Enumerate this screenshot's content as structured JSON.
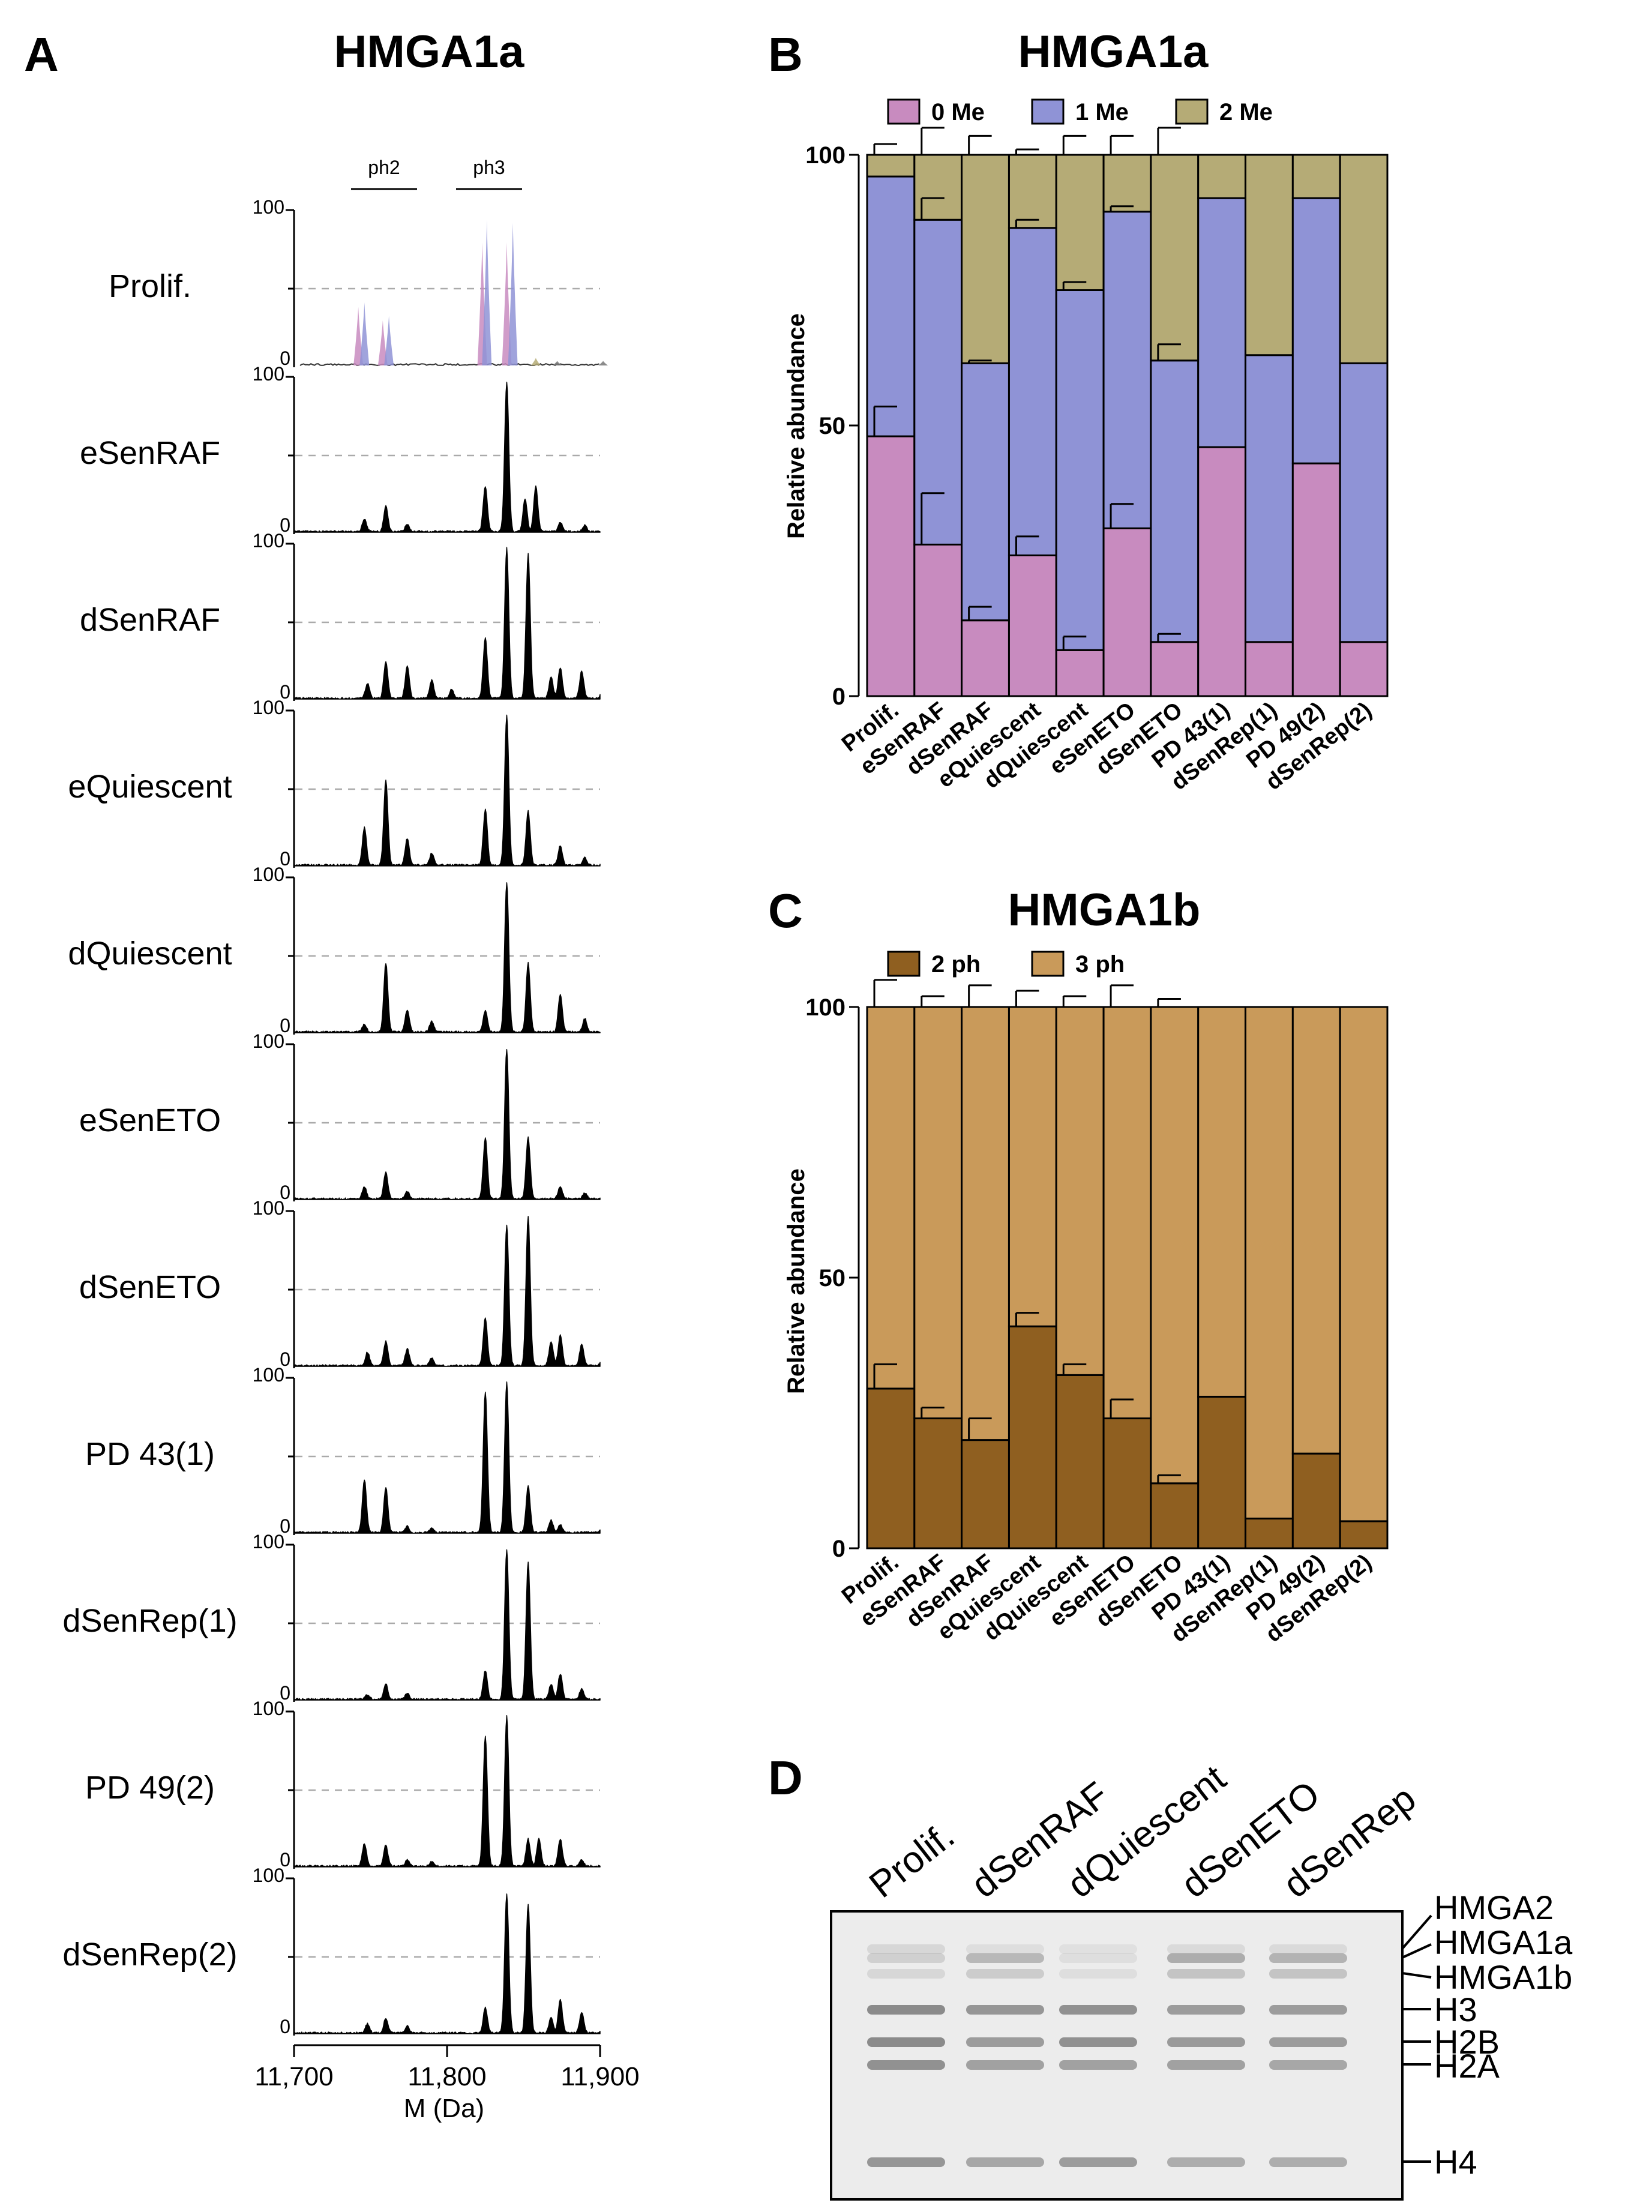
{
  "panelA": {
    "letter": "A",
    "title": "HMGA1a",
    "peak_labels": [
      "ph2",
      "ph3"
    ],
    "y_top": "100",
    "y_bottom": "0",
    "xaxis": {
      "ticks": [
        "11,700",
        "11,800",
        "11,900"
      ],
      "tick_values": [
        11700,
        11800,
        11900
      ],
      "range": [
        11700,
        11900
      ],
      "label": "M (Da)"
    },
    "colors": {
      "trace": "#000000",
      "me0": "#c88bbf",
      "me1": "#8f93d6",
      "me2": "#b5ab76",
      "dash": "#aaaaaa"
    },
    "spectra": [
      {
        "label": "Prolif.",
        "peaks": [
          [
            11742,
            0.39
          ],
          [
            11746,
            0.42
          ],
          [
            11758,
            0.3
          ],
          [
            11762,
            0.33
          ],
          [
            11823,
            0.82
          ],
          [
            11826,
            0.97
          ],
          [
            11839,
            0.82
          ],
          [
            11843,
            0.95
          ],
          [
            11858,
            0.05
          ],
          [
            11872,
            0.03
          ],
          [
            11902,
            0.03
          ]
        ]
      },
      {
        "label": "eSenRAF",
        "peaks": [
          [
            11746,
            0.08
          ],
          [
            11760,
            0.17
          ],
          [
            11774,
            0.05
          ],
          [
            11825,
            0.3
          ],
          [
            11839,
            1.0
          ],
          [
            11851,
            0.22
          ],
          [
            11858,
            0.3
          ],
          [
            11874,
            0.06
          ],
          [
            11890,
            0.04
          ]
        ]
      },
      {
        "label": "dSenRAF",
        "peaks": [
          [
            11748,
            0.1
          ],
          [
            11760,
            0.24
          ],
          [
            11774,
            0.21
          ],
          [
            11790,
            0.12
          ],
          [
            11803,
            0.06
          ],
          [
            11825,
            0.4
          ],
          [
            11839,
            1.0
          ],
          [
            11853,
            0.96
          ],
          [
            11868,
            0.14
          ],
          [
            11874,
            0.2
          ],
          [
            11888,
            0.18
          ],
          [
            11902,
            0.07
          ]
        ]
      },
      {
        "label": "eQuiescent",
        "peaks": [
          [
            11746,
            0.25
          ],
          [
            11760,
            0.57
          ],
          [
            11774,
            0.18
          ],
          [
            11790,
            0.08
          ],
          [
            11825,
            0.37
          ],
          [
            11839,
            1.0
          ],
          [
            11853,
            0.36
          ],
          [
            11874,
            0.13
          ],
          [
            11890,
            0.05
          ]
        ]
      },
      {
        "label": "dQuiescent",
        "peaks": [
          [
            11746,
            0.05
          ],
          [
            11760,
            0.46
          ],
          [
            11774,
            0.15
          ],
          [
            11790,
            0.07
          ],
          [
            11825,
            0.14
          ],
          [
            11839,
            1.0
          ],
          [
            11853,
            0.46
          ],
          [
            11874,
            0.25
          ],
          [
            11890,
            0.09
          ]
        ]
      },
      {
        "label": "eSenETO",
        "peaks": [
          [
            11746,
            0.08
          ],
          [
            11760,
            0.18
          ],
          [
            11774,
            0.05
          ],
          [
            11825,
            0.41
          ],
          [
            11839,
            1.0
          ],
          [
            11853,
            0.41
          ],
          [
            11874,
            0.08
          ],
          [
            11890,
            0.04
          ]
        ]
      },
      {
        "label": "dSenETO",
        "peaks": [
          [
            11748,
            0.09
          ],
          [
            11760,
            0.16
          ],
          [
            11774,
            0.11
          ],
          [
            11790,
            0.05
          ],
          [
            11825,
            0.32
          ],
          [
            11839,
            0.94
          ],
          [
            11853,
            1.0
          ],
          [
            11868,
            0.16
          ],
          [
            11874,
            0.2
          ],
          [
            11888,
            0.14
          ],
          [
            11902,
            0.05
          ]
        ]
      },
      {
        "label": "PD 43(1)",
        "peaks": [
          [
            11746,
            0.35
          ],
          [
            11760,
            0.3
          ],
          [
            11774,
            0.04
          ],
          [
            11790,
            0.03
          ],
          [
            11825,
            0.94
          ],
          [
            11839,
            1.0
          ],
          [
            11853,
            0.31
          ],
          [
            11868,
            0.08
          ],
          [
            11874,
            0.05
          ],
          [
            11902,
            0.05
          ]
        ]
      },
      {
        "label": "dSenRep(1)",
        "peaks": [
          [
            11748,
            0.03
          ],
          [
            11760,
            0.1
          ],
          [
            11774,
            0.04
          ],
          [
            11825,
            0.19
          ],
          [
            11839,
            1.0
          ],
          [
            11853,
            0.92
          ],
          [
            11868,
            0.1
          ],
          [
            11874,
            0.17
          ],
          [
            11888,
            0.07
          ]
        ]
      },
      {
        "label": "PD 49(2)",
        "peaks": [
          [
            11746,
            0.15
          ],
          [
            11760,
            0.14
          ],
          [
            11774,
            0.04
          ],
          [
            11790,
            0.03
          ],
          [
            11825,
            0.87
          ],
          [
            11839,
            1.0
          ],
          [
            11853,
            0.18
          ],
          [
            11860,
            0.18
          ],
          [
            11874,
            0.18
          ],
          [
            11888,
            0.04
          ]
        ]
      },
      {
        "label": "dSenRep(2)",
        "peaks": [
          [
            11748,
            0.06
          ],
          [
            11760,
            0.1
          ],
          [
            11774,
            0.05
          ],
          [
            11825,
            0.17
          ],
          [
            11839,
            0.93
          ],
          [
            11853,
            0.86
          ],
          [
            11868,
            0.1
          ],
          [
            11874,
            0.22
          ],
          [
            11888,
            0.14
          ],
          [
            11902,
            0.04
          ]
        ]
      }
    ]
  },
  "chart_data": [
    {
      "type": "bar",
      "stacked": true,
      "panel": "B",
      "title": "HMGA1a",
      "ylabel": "Relative abundance",
      "ylim": [
        0,
        100
      ],
      "yticks": [
        0,
        50,
        100
      ],
      "legend_position": "top-left",
      "categories": [
        "Prolif.",
        "eSenRAF",
        "dSenRAF",
        "eQuiescent",
        "dQuiescent",
        "eSenETO",
        "dSenETO",
        "PD 43(1)",
        "dSenRep(1)",
        "PD 49(2)",
        "dSenRep(2)"
      ],
      "series": [
        {
          "name": "0 Me",
          "color": "#c88bbf",
          "values": [
            48,
            28,
            14,
            26,
            8.5,
            31,
            10,
            46,
            10,
            43,
            10
          ],
          "errors": [
            5.5,
            9.5,
            2.5,
            3.5,
            2.5,
            4.5,
            1.5,
            null,
            null,
            null,
            null
          ]
        },
        {
          "name": "1 Me",
          "color": "#8f93d6",
          "values": [
            48,
            60,
            47.5,
            60.5,
            66.5,
            58.5,
            52,
            46,
            53,
            49,
            51.5
          ],
          "errors": [
            null,
            4,
            0.5,
            1.5,
            1.5,
            1,
            3,
            null,
            null,
            null,
            null
          ]
        },
        {
          "name": "2 Me",
          "color": "#b5ab76",
          "values": [
            4,
            12,
            38.5,
            13.5,
            25,
            10.5,
            38,
            8,
            37,
            8,
            38.5
          ],
          "errors": [
            2,
            5,
            3.5,
            1,
            3.5,
            3.5,
            5,
            null,
            null,
            null,
            null
          ]
        }
      ]
    },
    {
      "type": "bar",
      "stacked": true,
      "panel": "C",
      "title": "HMGA1b",
      "ylabel": "Relative abundance",
      "ylim": [
        0,
        100
      ],
      "yticks": [
        0,
        50,
        100
      ],
      "legend_position": "top-left",
      "categories": [
        "Prolif.",
        "eSenRAF",
        "dSenRAF",
        "eQuiescent",
        "dQuiescent",
        "eSenETO",
        "dSenETO",
        "PD 43(1)",
        "dSenRep(1)",
        "PD 49(2)",
        "dSenRep(2)"
      ],
      "series": [
        {
          "name": "2 ph",
          "color": "#8f5f20",
          "values": [
            29.5,
            24,
            20,
            41,
            32,
            24,
            12,
            28,
            5.5,
            17.5,
            5
          ],
          "errors": [
            4.5,
            2,
            4,
            2.5,
            2,
            3.5,
            1.5,
            null,
            null,
            null,
            null
          ]
        },
        {
          "name": "3 ph",
          "color": "#c99a5a",
          "values": [
            70.5,
            76,
            80,
            59,
            68,
            76,
            88,
            72,
            94.5,
            82.5,
            95
          ],
          "errors": [
            5,
            2,
            4,
            3,
            2,
            4,
            1.5,
            null,
            null,
            null,
            null
          ]
        }
      ]
    }
  ],
  "panelD": {
    "letter": "D",
    "lanes": [
      "Prolif.",
      "dSenRAF",
      "dQuiescent",
      "dSenETO",
      "dSenRep"
    ],
    "bands": [
      "HMGA2",
      "HMGA1a",
      "HMGA1b",
      "H3",
      "H2B",
      "H2A",
      "H4"
    ],
    "gel_bg": "#ececec",
    "band_color": "#7a7a7a"
  }
}
